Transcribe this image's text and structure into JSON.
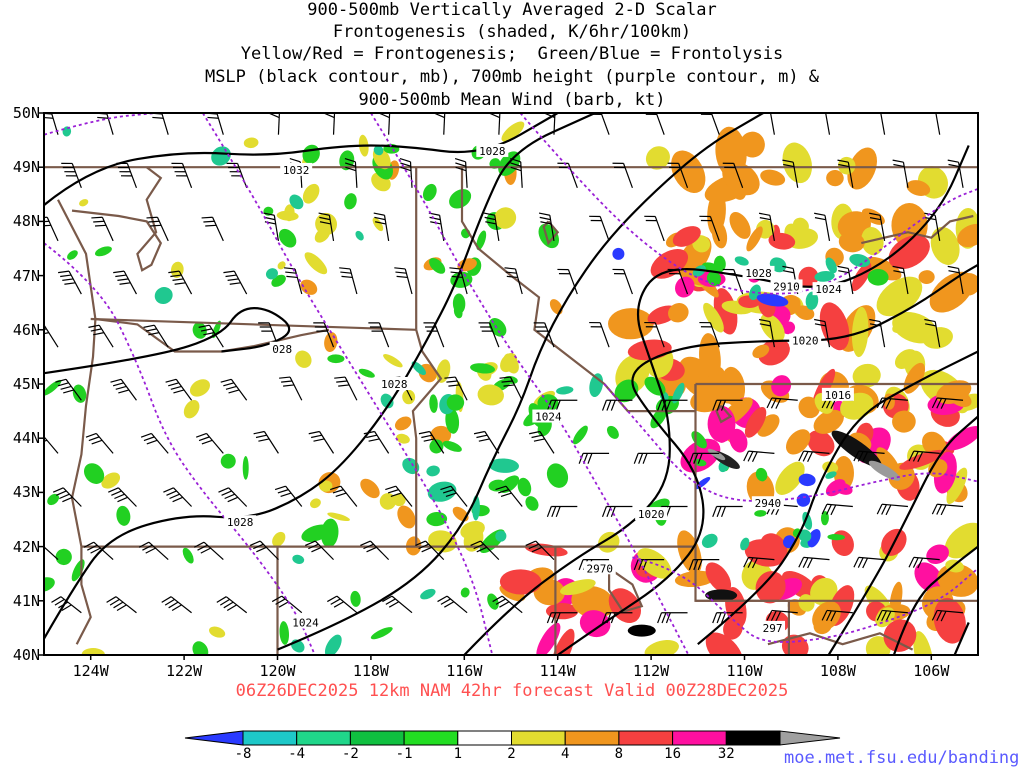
{
  "title_lines": [
    "900-500mb Vertically Averaged 2-D Scalar",
    "Frontogenesis (shaded, K/6hr/100km)",
    "Yellow/Red = Frontogenesis;  Green/Blue = Frontolysis",
    "MSLP (black contour, mb), 700mb height (purple contour, m) &",
    "900-500mb Mean Wind (barb, kt)"
  ],
  "footer": "06Z26DEC2025 12km NAM 42hr forecast Valid 00Z28DEC2025",
  "credit": "moe.met.fsu.edu/banding",
  "lat_labels": [
    "50N",
    "49N",
    "48N",
    "47N",
    "46N",
    "45N",
    "44N",
    "43N",
    "42N",
    "41N",
    "40N"
  ],
  "lon_labels": [
    "124W",
    "122W",
    "120W",
    "118W",
    "116W",
    "114W",
    "112W",
    "110W",
    "108W",
    "106W"
  ],
  "colorbar": {
    "labels": [
      "-8",
      "-4",
      "-2",
      "-1",
      "1",
      "2",
      "4",
      "8",
      "16",
      "32"
    ],
    "colors": [
      "#2a3aff",
      "#1ec8c8",
      "#20d68a",
      "#10c040",
      "#22dd22",
      "#ffffff",
      "#e2dc30",
      "#f0961e",
      "#f54040",
      "#ff10a0",
      "#000000",
      "#a0a0a0"
    ]
  },
  "mslp_labels": [
    {
      "text": "1032",
      "lon": -119.6,
      "lat": 48.95
    },
    {
      "text": "1028",
      "lon": -115.4,
      "lat": 49.3
    },
    {
      "text": "028",
      "lon": -119.9,
      "lat": 45.65
    },
    {
      "text": "1028",
      "lon": -117.5,
      "lat": 45.0
    },
    {
      "text": "1024",
      "lon": -114.2,
      "lat": 44.4
    },
    {
      "text": "1028",
      "lon": -120.8,
      "lat": 42.45
    },
    {
      "text": "1024",
      "lon": -119.4,
      "lat": 40.6
    },
    {
      "text": "1020",
      "lon": -112.0,
      "lat": 42.6
    },
    {
      "text": "1028",
      "lon": -109.7,
      "lat": 47.05
    },
    {
      "text": "1024",
      "lon": -108.2,
      "lat": 46.75
    },
    {
      "text": "1020",
      "lon": -108.7,
      "lat": 45.8
    },
    {
      "text": "1016",
      "lon": -108.0,
      "lat": 44.8
    }
  ],
  "height_labels": [
    {
      "text": "2910",
      "lon": -109.1,
      "lat": 46.8
    },
    {
      "text": "2970",
      "lon": -113.1,
      "lat": 41.6
    },
    {
      "text": "2940",
      "lon": -109.5,
      "lat": 42.8
    },
    {
      "text": "297",
      "lon": -109.4,
      "lat": 40.5
    }
  ]
}
